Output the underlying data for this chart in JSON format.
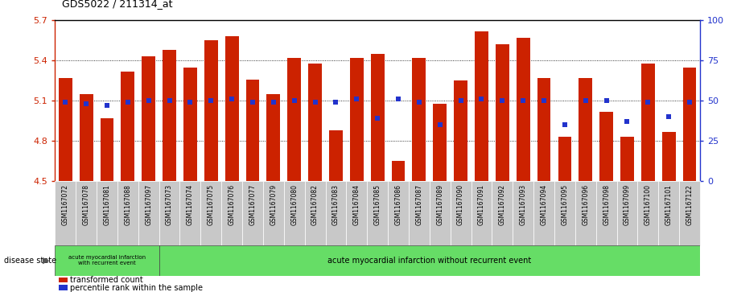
{
  "title": "GDS5022 / 211314_at",
  "samples": [
    "GSM1167072",
    "GSM1167078",
    "GSM1167081",
    "GSM1167088",
    "GSM1167097",
    "GSM1167073",
    "GSM1167074",
    "GSM1167075",
    "GSM1167076",
    "GSM1167077",
    "GSM1167079",
    "GSM1167080",
    "GSM1167082",
    "GSM1167083",
    "GSM1167084",
    "GSM1167085",
    "GSM1167086",
    "GSM1167087",
    "GSM1167089",
    "GSM1167090",
    "GSM1167091",
    "GSM1167092",
    "GSM1167093",
    "GSM1167094",
    "GSM1167095",
    "GSM1167096",
    "GSM1167098",
    "GSM1167099",
    "GSM1167100",
    "GSM1167101",
    "GSM1167122"
  ],
  "bar_values": [
    5.27,
    5.15,
    4.97,
    5.32,
    5.43,
    5.48,
    5.35,
    5.55,
    5.58,
    5.26,
    5.15,
    5.42,
    5.38,
    4.88,
    5.42,
    5.45,
    4.65,
    5.42,
    5.08,
    5.25,
    5.62,
    5.52,
    5.57,
    5.27,
    4.83,
    5.27,
    5.02,
    4.83,
    5.38,
    4.87,
    5.35
  ],
  "percentile_values": [
    49,
    48,
    47,
    49,
    50,
    50,
    49,
    50,
    51,
    49,
    49,
    50,
    49,
    49,
    51,
    39,
    51,
    49,
    35,
    50,
    51,
    50,
    50,
    50,
    35,
    50,
    50,
    37,
    49,
    40,
    49
  ],
  "ylim_left": [
    4.5,
    5.7
  ],
  "ylim_right": [
    0,
    100
  ],
  "bar_color": "#cc2200",
  "percentile_color": "#2233cc",
  "axis_color_left": "#cc2200",
  "axis_color_right": "#2233cc",
  "group1_label": "acute myocardial infarction\nwith recurrent event",
  "group2_label": "acute myocardial infarction without recurrent event",
  "group1_count": 5,
  "disease_state_label": "disease state",
  "legend_bar_label": "transformed count",
  "legend_dot_label": "percentile rank within the sample",
  "yticks_left": [
    4.5,
    4.8,
    5.1,
    5.4,
    5.7
  ],
  "yticks_right": [
    0,
    25,
    50,
    75,
    100
  ],
  "green_color": "#66dd66",
  "gray_color": "#c8c8c8"
}
